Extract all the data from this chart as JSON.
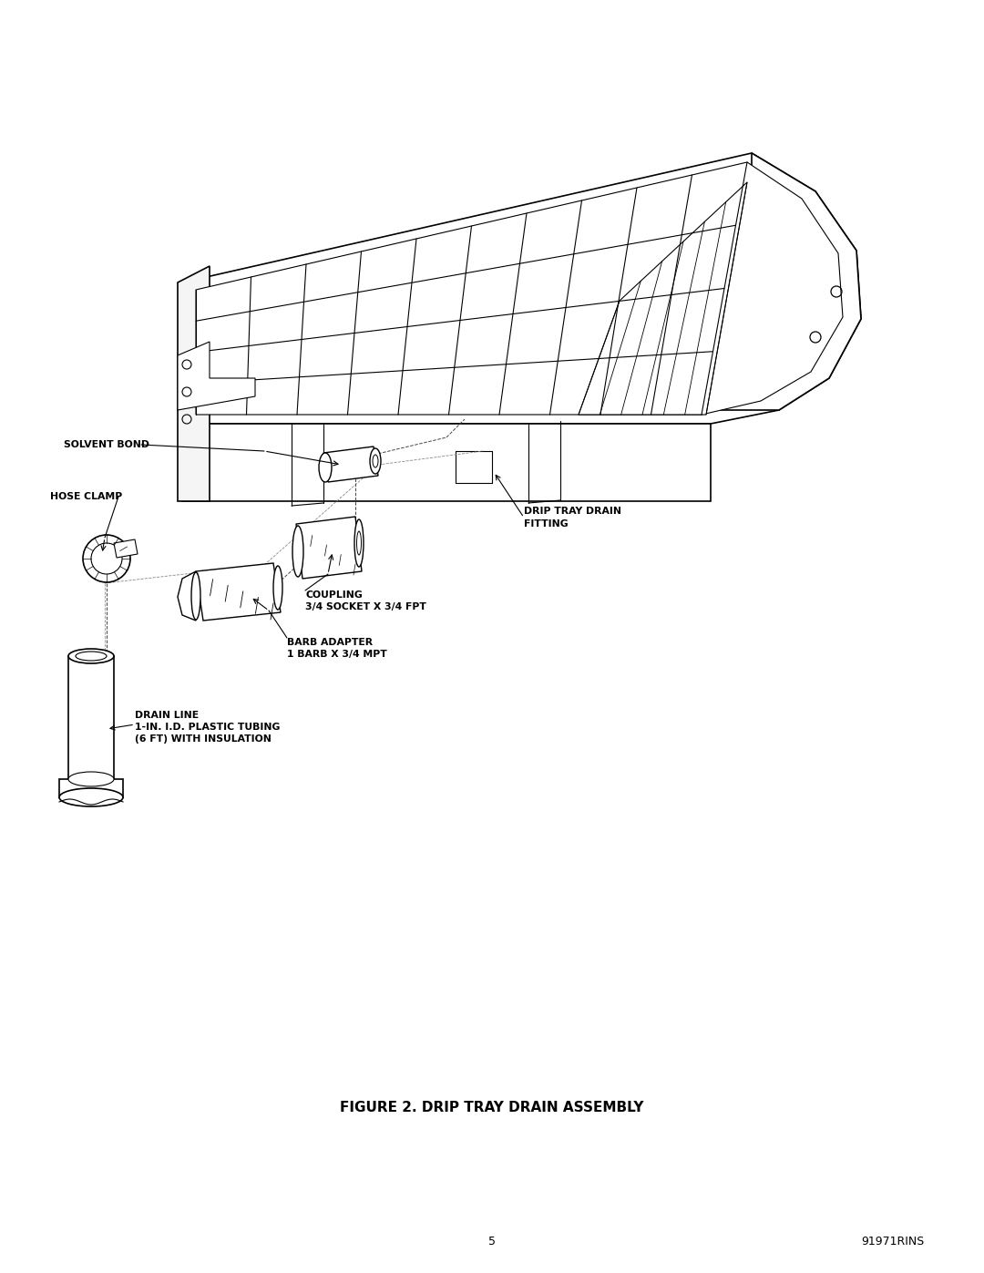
{
  "title": "FIGURE 2. DRIP TRAY DRAIN ASSEMBLY",
  "page_number": "5",
  "doc_number": "91971RINS",
  "background_color": "#ffffff",
  "line_color": "#000000",
  "text_color": "#000000",
  "label_fontsize": 7.8,
  "title_fontsize": 11,
  "footer_fontsize": 9,
  "labels": {
    "solvent_bond": "SOLVENT BOND",
    "hose_clamp": "HOSE CLAMP",
    "drip_tray_drain_fitting": "DRIP TRAY DRAIN\nFITTING",
    "coupling": "COUPLING\n3/4 SOCKET X 3/4 FPT",
    "barb_adapter": "BARB ADAPTER\n1 BARB X 3/4 MPT",
    "drain_line": "DRAIN LINE\n1-IN. I.D. PLASTIC TUBING\n(6 FT) WITH INSULATION"
  }
}
